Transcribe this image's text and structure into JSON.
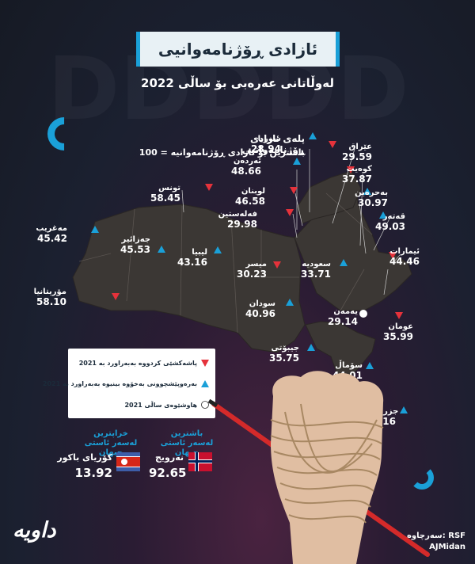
{
  "title": "ئازادی ڕۆژنامەوانیی",
  "subtitle": "لەوڵاتانی عەرەبی بۆ ساڵی 2022",
  "index_label": "پلەی ئازادی ڕۆژنامەوانیی",
  "index_note": "100 = باشترین بۆ ئازادی ڕۆژنامەوانیە",
  "legend": [
    {
      "marker": "down",
      "label": "پاشەکشێی کردووە بەبەراورد بە 2021"
    },
    {
      "marker": "up",
      "label": "بەرەوپێشچوونی بەخۆوە بینیوە بەبەراورد بە 2021"
    },
    {
      "marker": "same",
      "label": "هاوشێوەی ساڵی 2021"
    }
  ],
  "chart_data": {
    "type": "map",
    "title": "ئازادی ڕۆژنامەوانیی",
    "subtitle": "لەوڵاتانی عەرەبی بۆ ساڵی 2022",
    "countries": [
      {
        "name": "عێراق",
        "value": "29.59",
        "change": "down"
      },
      {
        "name": "سوریا",
        "value": "28.94",
        "change": "up"
      },
      {
        "name": "ئەردەن",
        "value": "48.66",
        "change": "up"
      },
      {
        "name": "کوەیت",
        "value": "37.87",
        "change": "down"
      },
      {
        "name": "لوبنان",
        "value": "46.58",
        "change": "down"
      },
      {
        "name": "فەلەستین",
        "value": "29.98",
        "change": "down"
      },
      {
        "name": "بەحرەین",
        "value": "30.97",
        "change": "up"
      },
      {
        "name": "تونس",
        "value": "58.45",
        "change": "down"
      },
      {
        "name": "قەتەر",
        "value": "49.03",
        "change": "up"
      },
      {
        "name": "مەغریب",
        "value": "45.42",
        "change": "up"
      },
      {
        "name": "ئیمارات",
        "value": "44.46",
        "change": "down"
      },
      {
        "name": "جەزائیر",
        "value": "45.53",
        "change": "up"
      },
      {
        "name": "لیبیا",
        "value": "43.16",
        "change": "up"
      },
      {
        "name": "میسر",
        "value": "30.23",
        "change": "down"
      },
      {
        "name": "سعودیە",
        "value": "33.71",
        "change": "up"
      },
      {
        "name": "مۆریتانیا",
        "value": "58.10",
        "change": "down"
      },
      {
        "name": "سودان",
        "value": "40.96",
        "change": "up"
      },
      {
        "name": "یەمەن",
        "value": "29.14",
        "change": "same"
      },
      {
        "name": "عومان",
        "value": "35.99",
        "change": "down"
      },
      {
        "name": "جیبۆتی",
        "value": "35.75",
        "change": "up"
      },
      {
        "name": "سۆماڵ",
        "value": "44.01",
        "change": "up"
      },
      {
        "name": "جزر قەمەر",
        "value": "60.16",
        "change": "up"
      }
    ]
  },
  "best_world": {
    "header_1": "باشترین",
    "header_2": "لەسەر ئاستی جیهان",
    "country": "نەرویج",
    "value": "92.65"
  },
  "worst_world": {
    "header_1": "خراپترین",
    "header_2": "لەسەر ئاستی جیهان",
    "country": "کۆریای باکور",
    "value": "13.92"
  },
  "logo": "داویە",
  "source_label": "سەرچاوە: RSF",
  "source_credit": "AJMidan",
  "colors": {
    "up": "#1aa0d8",
    "down": "#e5323b",
    "same": "#ffffff",
    "map": "#3b3734",
    "accent": "#1aa0d8"
  }
}
